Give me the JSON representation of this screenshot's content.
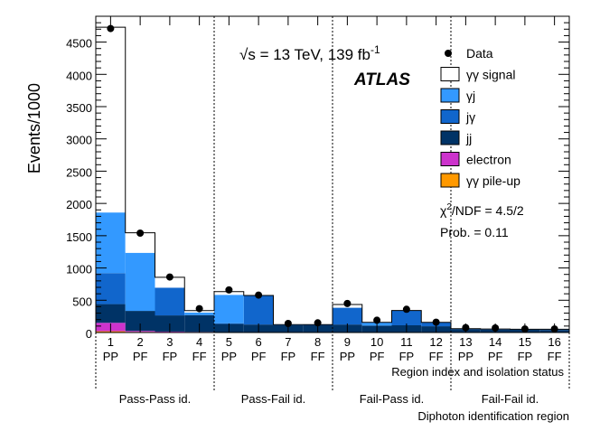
{
  "chart_data": {
    "type": "bar",
    "stacked": true,
    "ylabel": "Events/1000",
    "ylim": [
      0,
      4900
    ],
    "yticks": [
      0,
      500,
      1000,
      1500,
      2000,
      2500,
      3000,
      3500,
      4000,
      4500
    ],
    "yticks_label": [
      "0",
      "500",
      "1000",
      "1500",
      "2000",
      "2500",
      "3000",
      "3500",
      "4000",
      "4500"
    ],
    "categories": [
      "1",
      "2",
      "3",
      "4",
      "5",
      "6",
      "7",
      "8",
      "9",
      "10",
      "11",
      "12",
      "13",
      "14",
      "15",
      "16"
    ],
    "isolation": [
      "PP",
      "PF",
      "FP",
      "FF",
      "PP",
      "PF",
      "FP",
      "FF",
      "PP",
      "PF",
      "FP",
      "FF",
      "PP",
      "PF",
      "FP",
      "FF"
    ],
    "xlabel_region": "Region index and isolation status",
    "groups": [
      "Pass-Pass id.",
      "Pass-Fail id.",
      "Fail-Pass id.",
      "Fail-Fail id."
    ],
    "xlabel_group": "Diphoton identification region",
    "series": [
      {
        "name": "γγ pile-up",
        "color": "#ff9900",
        "values": [
          20,
          10,
          5,
          5,
          2,
          2,
          1,
          1,
          2,
          1,
          1,
          1,
          0,
          0,
          0,
          0
        ]
      },
      {
        "name": "electron",
        "color": "#cc33cc",
        "values": [
          130,
          15,
          10,
          5,
          2,
          2,
          1,
          1,
          2,
          1,
          1,
          1,
          0,
          0,
          0,
          0
        ]
      },
      {
        "name": "jj",
        "color": "#003366",
        "values": [
          290,
          310,
          250,
          260,
          130,
          120,
          110,
          110,
          120,
          105,
          110,
          95,
          50,
          45,
          42,
          40
        ]
      },
      {
        "name": "jγ",
        "color": "#1166cc",
        "values": [
          480,
          0,
          430,
          0,
          10,
          450,
          0,
          10,
          260,
          0,
          230,
          60,
          5,
          5,
          3,
          5
        ]
      },
      {
        "name": "γj",
        "color": "#3399ff",
        "values": [
          940,
          900,
          0,
          40,
          440,
          0,
          10,
          0,
          0,
          50,
          0,
          0,
          5,
          5,
          5,
          5
        ]
      },
      {
        "name": "γγ signal",
        "color": "#ffffff",
        "values": [
          2870,
          310,
          160,
          30,
          50,
          0,
          0,
          0,
          50,
          0,
          0,
          0,
          0,
          0,
          0,
          0
        ]
      }
    ],
    "data": {
      "name": "Data",
      "values": [
        4710,
        1540,
        860,
        370,
        660,
        580,
        140,
        150,
        450,
        190,
        360,
        160,
        75,
        70,
        55,
        55
      ]
    },
    "legend": [
      {
        "label": "Data",
        "kind": "marker"
      },
      {
        "label": "γγ signal",
        "kind": "box",
        "color": "#ffffff"
      },
      {
        "label": "γj",
        "kind": "box",
        "color": "#3399ff"
      },
      {
        "label": "jγ",
        "kind": "box",
        "color": "#1166cc"
      },
      {
        "label": "jj",
        "kind": "box",
        "color": "#003366"
      },
      {
        "label": "electron",
        "kind": "box",
        "color": "#cc33cc"
      },
      {
        "label": "γγ pile-up",
        "kind": "box",
        "color": "#ff9900"
      }
    ],
    "legend_position": "top-right",
    "energy_sqrt": "√s",
    "energy_eq": " = 13 TeV, 139 fb",
    "energy_sup": "-1",
    "experiment": "ATLAS",
    "chi2_symbol": "χ",
    "chi2_sup": "2",
    "chi2_rest": "/NDF = 4.5/2",
    "prob": "Prob. = 0.11"
  }
}
